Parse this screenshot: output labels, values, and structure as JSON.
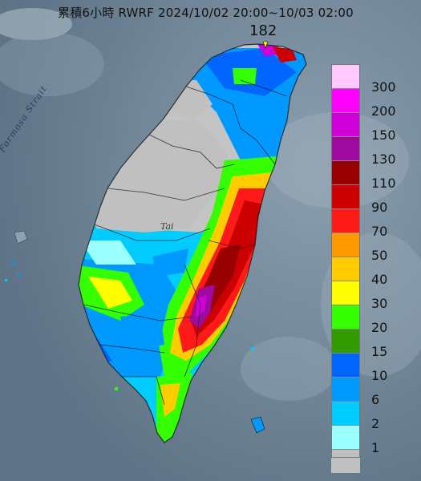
{
  "header": {
    "title": "累積6小時 RWRF 2024/10/02 20:00~10/03 02:00",
    "max_value": "182"
  },
  "map_labels": {
    "strait": "Formosa Strait",
    "place": "Tai"
  },
  "legend": {
    "levels": [
      {
        "label": "300",
        "color": "#ffc8ff"
      },
      {
        "label": "200",
        "color": "#ff00ff"
      },
      {
        "label": "150",
        "color": "#d000d8"
      },
      {
        "label": "130",
        "color": "#9e0a9e"
      },
      {
        "label": "110",
        "color": "#990000"
      },
      {
        "label": "90",
        "color": "#cc0000"
      },
      {
        "label": "70",
        "color": "#ff1a1a"
      },
      {
        "label": "50",
        "color": "#ff9900"
      },
      {
        "label": "40",
        "color": "#ffcc00"
      },
      {
        "label": "30",
        "color": "#ffff00"
      },
      {
        "label": "20",
        "color": "#33ff00"
      },
      {
        "label": "15",
        "color": "#339900"
      },
      {
        "label": "10",
        "color": "#0066ff"
      },
      {
        "label": "6",
        "color": "#0099ff"
      },
      {
        "label": "2",
        "color": "#00ccff"
      },
      {
        "label": "1",
        "color": "#99ffff"
      },
      {
        "label": "",
        "color": "#c0c0c0"
      }
    ]
  }
}
